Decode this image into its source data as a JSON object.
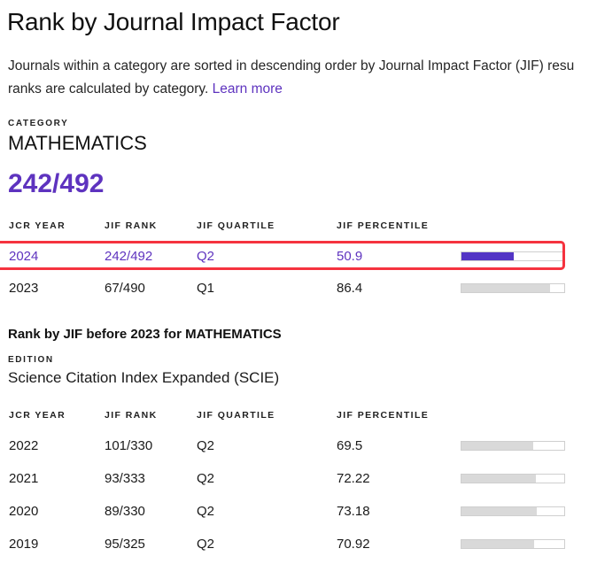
{
  "page": {
    "title": "Rank by Journal Impact Factor",
    "description_line1": "Journals within a category are sorted in descending order by Journal Impact Factor (JIF) resu",
    "description_line2": "ranks are calculated by category.",
    "learn_more_label": "Learn more"
  },
  "category": {
    "label": "CATEGORY",
    "name": "MATHEMATICS",
    "current_rank": "242/492"
  },
  "current_table": {
    "headers": {
      "year": "JCR YEAR",
      "rank": "JIF RANK",
      "quartile": "JIF QUARTILE",
      "percentile": "JIF PERCENTILE"
    },
    "rows": [
      {
        "year": "2024",
        "rank": "242/492",
        "quartile": "Q2",
        "percentile": "50.9",
        "bar_pct": 50.9,
        "highlighted": true
      },
      {
        "year": "2023",
        "rank": "67/490",
        "quartile": "Q1",
        "percentile": "86.4",
        "bar_pct": 86.4,
        "highlighted": false
      }
    ]
  },
  "history": {
    "heading": "Rank by JIF before 2023 for MATHEMATICS",
    "edition_label": "EDITION",
    "edition_name": "Science Citation Index Expanded (SCIE)",
    "table": {
      "headers": {
        "year": "JCR YEAR",
        "rank": "JIF RANK",
        "quartile": "JIF QUARTILE",
        "percentile": "JIF PERCENTILE"
      },
      "rows": [
        {
          "year": "2022",
          "rank": "101/330",
          "quartile": "Q2",
          "percentile": "69.5",
          "bar_pct": 69.5
        },
        {
          "year": "2021",
          "rank": "93/333",
          "quartile": "Q2",
          "percentile": "72.22",
          "bar_pct": 72.22
        },
        {
          "year": "2020",
          "rank": "89/330",
          "quartile": "Q2",
          "percentile": "73.18",
          "bar_pct": 73.18
        },
        {
          "year": "2019",
          "rank": "95/325",
          "quartile": "Q2",
          "percentile": "70.92",
          "bar_pct": 70.92
        }
      ]
    }
  },
  "colors": {
    "accent_purple": "#5e33bf",
    "bar_fill_purple": "#5335c5",
    "bar_fill_gray": "#d9d9d9",
    "bar_track_border": "#cfcfcf",
    "highlight_border_red": "#f5333f"
  }
}
